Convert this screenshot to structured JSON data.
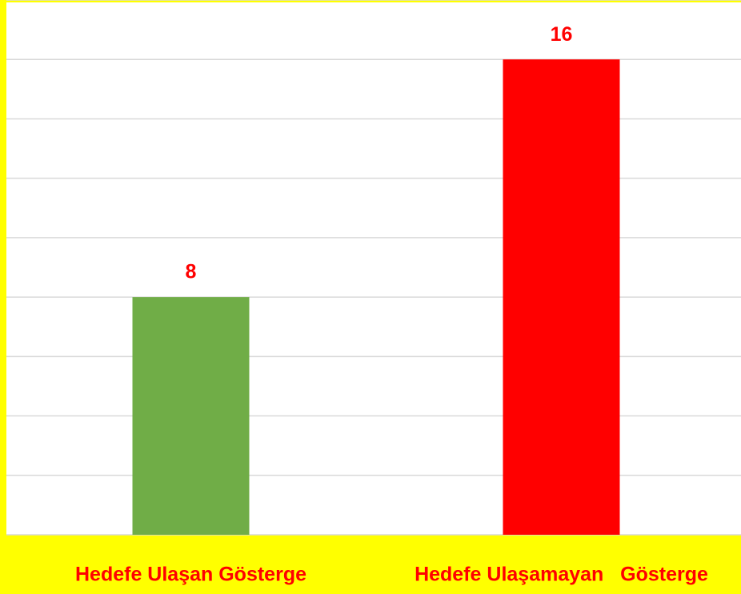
{
  "chart_data": {
    "type": "bar",
    "categories": [
      "Hedefe Ulaşan Gösterge",
      "Hedefe Ulaşamayan   Gösterge"
    ],
    "values": [
      8,
      16
    ],
    "colors": [
      "#70ad47",
      "#ff0000"
    ],
    "label_color": "#ff0000",
    "ylim": [
      0,
      18
    ],
    "yticks": [
      0,
      2,
      4,
      6,
      8,
      10,
      12,
      14,
      16,
      18
    ],
    "grid": true
  }
}
